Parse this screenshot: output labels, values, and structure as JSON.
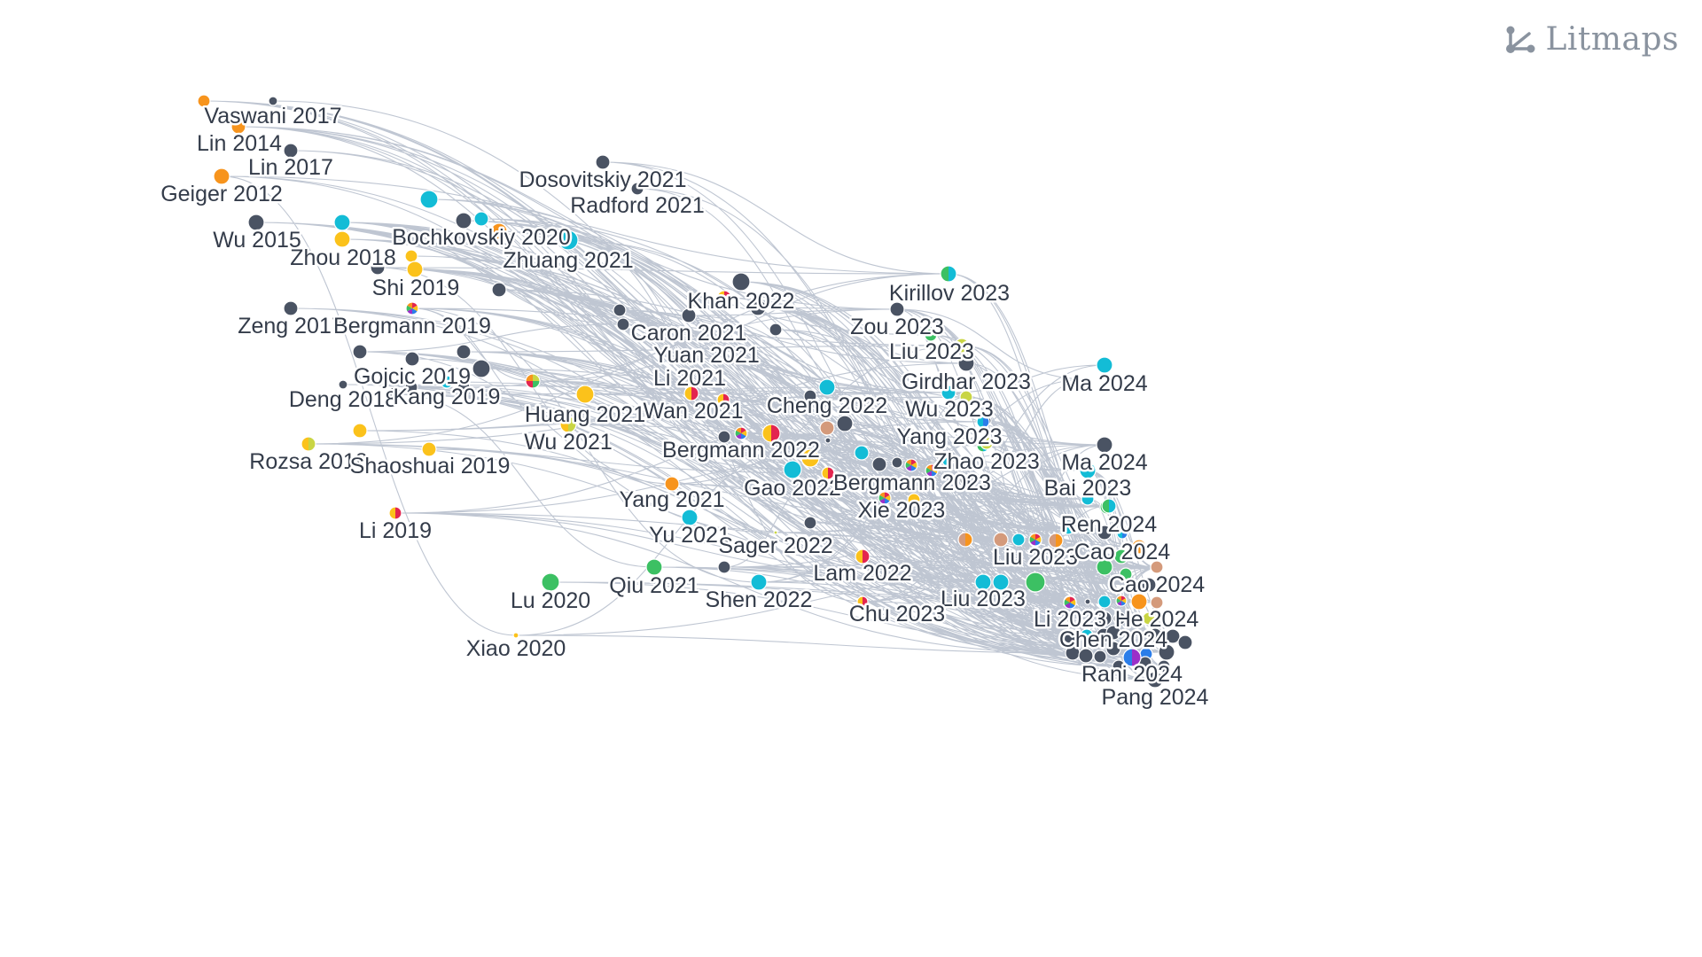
{
  "brand": {
    "name": "Litmaps",
    "icon": "litmaps-logo-icon",
    "color": "#8a939f"
  },
  "colors": {
    "background": "#ffffff",
    "edge": "#a9b3c3",
    "dark": "#4a5363",
    "orange": "#f7941d",
    "yellow": "#fbc21b",
    "cyan": "#13bcd6",
    "green": "#3cc063",
    "tan": "#d49a7b",
    "lime": "#c9d544",
    "red": "#e3254f",
    "purple": "#9b30c8",
    "blue": "#2b7de9",
    "label": "#343c4a"
  },
  "labels": [
    "Vaswani 2017",
    "Lin 2014",
    "Lin 2017",
    "Geiger 2012",
    "Wu 2015",
    "Dosovitskiy 2021",
    "Radford 2021",
    "Bochkovskiy 2020",
    "Zhuang 2021",
    "Zhou 2018",
    "Shi 2019",
    "Zeng 2017",
    "Bergmann 2019",
    "Khan 2022",
    "Caron 2021",
    "Yuan 2021",
    "Kirillov 2023",
    "Zou 2023",
    "Liu 2023",
    "Girdhar 2023",
    "Ma 2024",
    "Gojcic 2019",
    "Deng 2018",
    "Kang 2019",
    "Li 2021",
    "Wan 2021",
    "Huang 2021",
    "Cheng 2022",
    "Wu 2023",
    "Wu 2021",
    "Yang 2023",
    "Bergmann 2022",
    "Zhao 2023",
    "Ma 2024",
    "Rozsa 2018",
    "Shaoshuai 2019",
    "Gao 2022",
    "Bergmann 2023",
    "Bai 2023",
    "Yang 2021",
    "Xie 2023",
    "Li 2019",
    "Yu 2021",
    "Sager 2022",
    "Ren 2024",
    "Liu 2023",
    "Cao 2024",
    "Lam 2022",
    "Cao 2024",
    "Lu 2020",
    "Qiu 2021",
    "Shen 2022",
    "Liu 2023",
    "Chu 2023",
    "Li 2023",
    "He 2024",
    "Chen 2024",
    "Xiao 2020",
    "Rani 2024",
    "Pang 2024"
  ]
}
